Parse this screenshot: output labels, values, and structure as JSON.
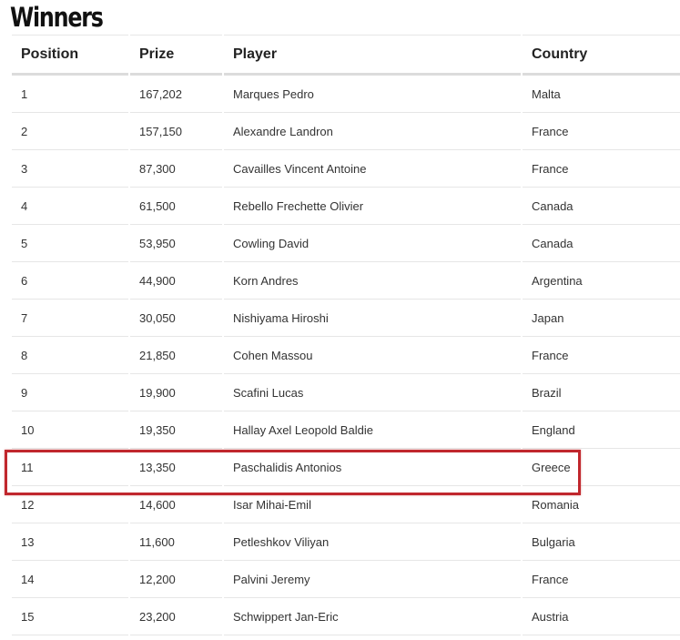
{
  "title": "Winners",
  "columns": [
    "Position",
    "Prize",
    "Player",
    "Country"
  ],
  "rows": [
    [
      "1",
      "167,202",
      "Marques Pedro",
      "Malta"
    ],
    [
      "2",
      "157,150",
      "Alexandre Landron",
      "France"
    ],
    [
      "3",
      "87,300",
      "Cavailles Vincent Antoine",
      "France"
    ],
    [
      "4",
      "61,500",
      "Rebello Frechette Olivier",
      "Canada"
    ],
    [
      "5",
      "53,950",
      "Cowling David",
      "Canada"
    ],
    [
      "6",
      "44,900",
      "Korn Andres",
      "Argentina"
    ],
    [
      "7",
      "30,050",
      "Nishiyama Hiroshi",
      "Japan"
    ],
    [
      "8",
      "21,850",
      "Cohen Massou",
      "France"
    ],
    [
      "9",
      "19,900",
      "Scafini Lucas",
      "Brazil"
    ],
    [
      "10",
      "19,350",
      "Hallay Axel Leopold Baldie",
      "England"
    ],
    [
      "11",
      "13,350",
      "Paschalidis Antonios",
      "Greece"
    ],
    [
      "12",
      "14,600",
      "Isar Mihai-Emil",
      "Romania"
    ],
    [
      "13",
      "11,600",
      "Petleshkov Viliyan",
      "Bulgaria"
    ],
    [
      "14",
      "12,200",
      "Palvini Jeremy",
      "France"
    ],
    [
      "15",
      "23,200",
      "Schwippert Jan-Eric",
      "Austria"
    ]
  ],
  "highlighted_row": 11,
  "highlight_color": "#c0272d"
}
